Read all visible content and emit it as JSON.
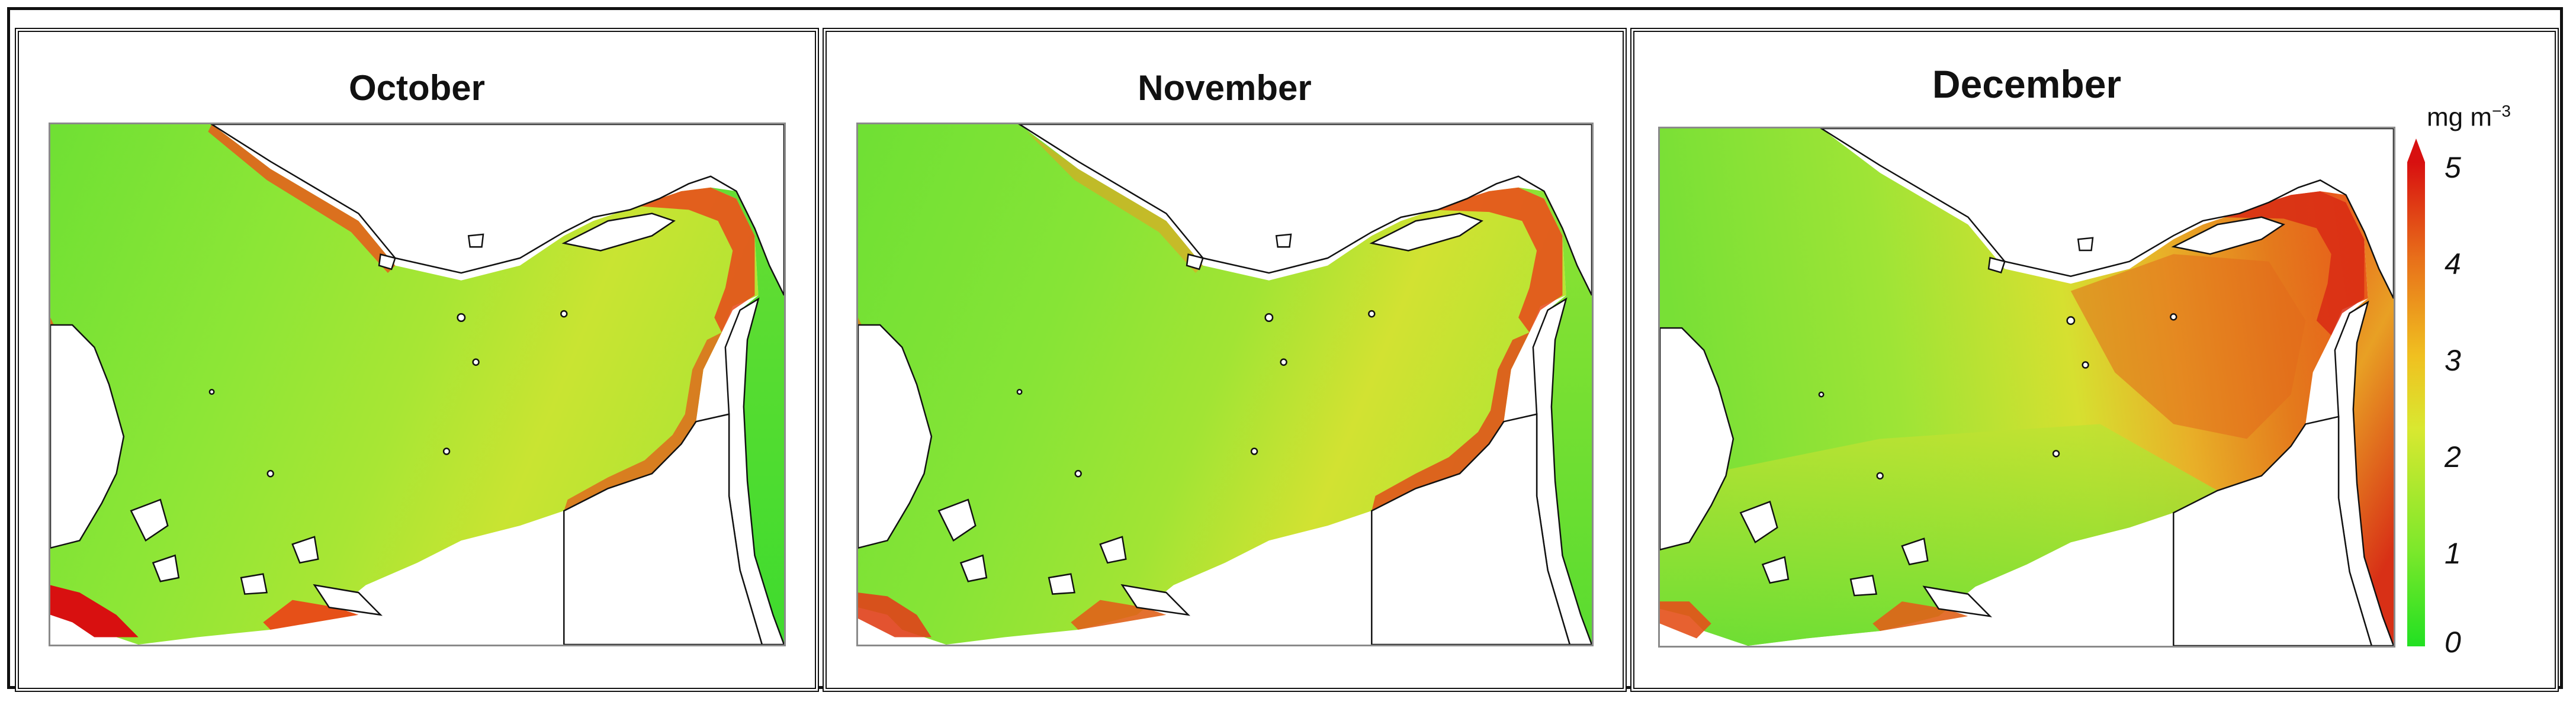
{
  "panels": [
    {
      "title": "October"
    },
    {
      "title": "November"
    },
    {
      "title": "December"
    }
  ],
  "colorbar": {
    "unit": "mg m",
    "unit_exponent": "−3",
    "ticks": [
      "5",
      "4",
      "3",
      "2",
      "1",
      "0"
    ],
    "range": [
      0,
      5
    ],
    "colors": [
      "#22e022",
      "#7de82b",
      "#d9e830",
      "#f0c020",
      "#e8701a",
      "#d81010"
    ]
  },
  "colors": {
    "low": "#4fe03a",
    "mid": "#c6e632",
    "high": "#e8541a",
    "peak": "#d01010",
    "land": "#ffffff",
    "coast": "#111111"
  }
}
